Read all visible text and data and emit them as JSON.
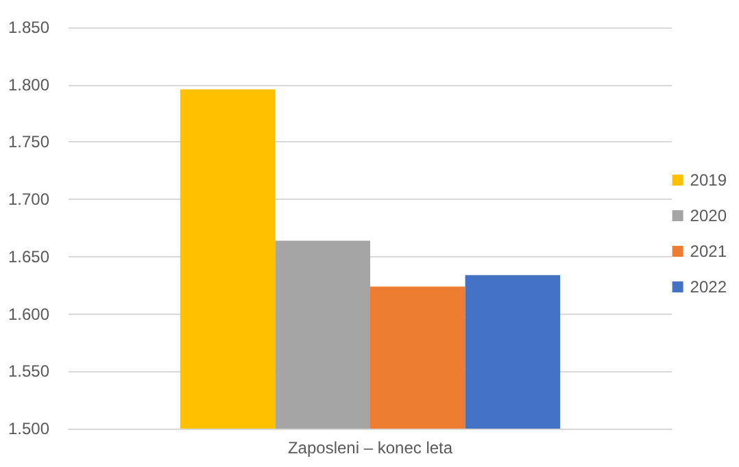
{
  "chart_data": {
    "type": "bar",
    "categories": [
      "Zaposleni – konec leta"
    ],
    "series": [
      {
        "name": "2019",
        "color": "#ffc000",
        "values": [
          1796
        ]
      },
      {
        "name": "2020",
        "color": "#a5a5a5",
        "values": [
          1664
        ]
      },
      {
        "name": "2021",
        "color": "#ed7d31",
        "values": [
          1624
        ]
      },
      {
        "name": "2022",
        "color": "#4472c4",
        "values": [
          1634
        ]
      }
    ],
    "ylim": [
      1500,
      1850
    ],
    "yticks": [
      {
        "value": 1500,
        "label": "1.500"
      },
      {
        "value": 1550,
        "label": "1.550"
      },
      {
        "value": 1600,
        "label": "1.600"
      },
      {
        "value": 1650,
        "label": "1.650"
      },
      {
        "value": 1700,
        "label": "1.700"
      },
      {
        "value": 1750,
        "label": "1.750"
      },
      {
        "value": 1800,
        "label": "1.800"
      },
      {
        "value": 1850,
        "label": "1.850"
      }
    ],
    "grid": "y",
    "legend": "right"
  }
}
